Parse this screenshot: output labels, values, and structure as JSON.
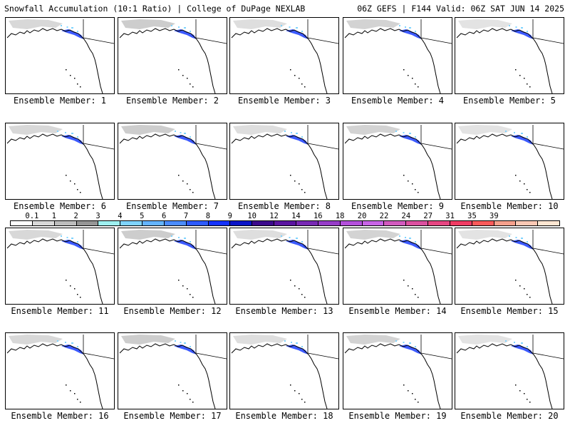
{
  "header": {
    "left": "Snowfall Accumulation (10:1 Ratio) | College of DuPage NEXLAB",
    "right": "06Z GEFS | F144 Valid: 06Z SAT JUN 14 2025"
  },
  "legend": {
    "ticks": [
      "0.1",
      "1",
      "2",
      "3",
      "4",
      "5",
      "6",
      "7",
      "8",
      "9",
      "10",
      "12",
      "14",
      "16",
      "18",
      "20",
      "22",
      "24",
      "27",
      "31",
      "35",
      "39"
    ],
    "colors": [
      "#ffffff",
      "#d9d9d9",
      "#bdbdbd",
      "#969696",
      "#9ef0f0",
      "#7fd4ff",
      "#64b4ff",
      "#4b8cff",
      "#2d5aff",
      "#1432ff",
      "#0a14c8",
      "#3c0a8c",
      "#5a14a0",
      "#7828b4",
      "#963cc8",
      "#b450dc",
      "#c864e6",
      "#d25abe",
      "#dc50a0",
      "#e64682",
      "#f03c64",
      "#fa5a5a",
      "#f5a08c",
      "#fac8b4",
      "#ffe6d2"
    ]
  },
  "panel_label_prefix": "Ensemble Member: ",
  "panels": [
    {
      "label": "Ensemble Member: 1",
      "member": 1
    },
    {
      "label": "Ensemble Member: 2",
      "member": 2
    },
    {
      "label": "Ensemble Member: 3",
      "member": 3
    },
    {
      "label": "Ensemble Member: 4",
      "member": 4
    },
    {
      "label": "Ensemble Member: 5",
      "member": 5
    },
    {
      "label": "Ensemble Member: 6",
      "member": 6
    },
    {
      "label": "Ensemble Member: 7",
      "member": 7
    },
    {
      "label": "Ensemble Member: 8",
      "member": 8
    },
    {
      "label": "Ensemble Member: 9",
      "member": 9
    },
    {
      "label": "Ensemble Member: 10",
      "member": 10
    },
    {
      "label": "Ensemble Member: 11",
      "member": 11
    },
    {
      "label": "Ensemble Member: 12",
      "member": 12
    },
    {
      "label": "Ensemble Member: 13",
      "member": 13
    },
    {
      "label": "Ensemble Member: 14",
      "member": 14
    },
    {
      "label": "Ensemble Member: 15",
      "member": 15
    },
    {
      "label": "Ensemble Member: 16",
      "member": 16
    },
    {
      "label": "Ensemble Member: 17",
      "member": 17
    },
    {
      "label": "Ensemble Member: 18",
      "member": 18
    },
    {
      "label": "Ensemble Member: 19",
      "member": 19
    },
    {
      "label": "Ensemble Member: 20",
      "member": 20
    }
  ]
}
